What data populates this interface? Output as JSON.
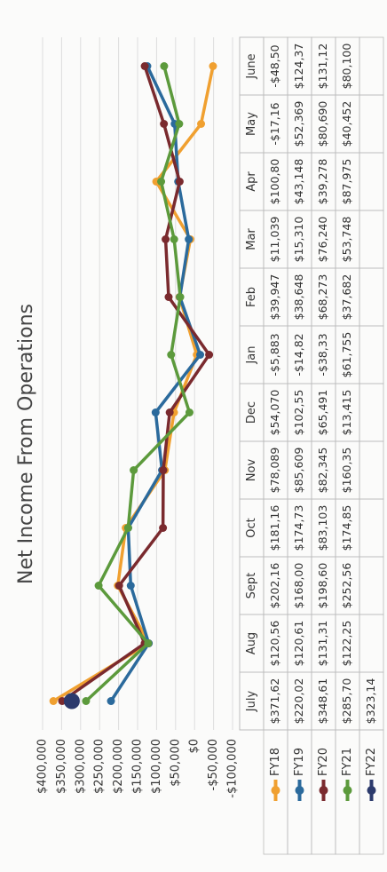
{
  "chart_data": {
    "type": "line",
    "title": "Net Income From Operations",
    "categories": [
      "July",
      "Aug",
      "Sept",
      "Oct",
      "Nov",
      "Dec",
      "Jan",
      "Feb",
      "Mar",
      "Apr",
      "May",
      "June"
    ],
    "series": [
      {
        "name": "FY18",
        "color": "#f0a030",
        "values": [
          371620,
          120560,
          202160,
          181160,
          78089,
          54070,
          -5883,
          39947,
          11039,
          100800,
          -17160,
          -48500
        ]
      },
      {
        "name": "FY19",
        "color": "#2b6a9c",
        "values": [
          220020,
          120610,
          168000,
          174730,
          85609,
          102550,
          -14820,
          38648,
          15310,
          43148,
          52369,
          124370
        ]
      },
      {
        "name": "FY20",
        "color": "#7a2a2e",
        "values": [
          348610,
          131310,
          198600,
          83103,
          82345,
          65491,
          -38330,
          68273,
          76240,
          39278,
          80690,
          131120
        ]
      },
      {
        "name": "FY21",
        "color": "#5c9a3c",
        "values": [
          285700,
          122250,
          252560,
          174850,
          160350,
          13415,
          61755,
          37682,
          53748,
          87975,
          40452,
          80100
        ]
      },
      {
        "name": "FY22",
        "color": "#2c3a6c",
        "values": [
          323140,
          null,
          null,
          null,
          null,
          null,
          null,
          null,
          null,
          null,
          null,
          null
        ]
      }
    ],
    "ylim": [
      -100000,
      400000
    ],
    "yticks": [
      {
        "value": -100000,
        "label": "-$100,000"
      },
      {
        "value": -50000,
        "label": "-$50,000"
      },
      {
        "value": 0,
        "label": "$0"
      },
      {
        "value": 50000,
        "label": "$50,000"
      },
      {
        "value": 100000,
        "label": "$100,000"
      },
      {
        "value": 150000,
        "label": "$150,000"
      },
      {
        "value": 200000,
        "label": "$200,000"
      },
      {
        "value": 250000,
        "label": "$250,000"
      },
      {
        "value": 300000,
        "label": "$300,000"
      },
      {
        "value": 350000,
        "label": "$350,000"
      },
      {
        "value": 400000,
        "label": "$400,000"
      }
    ],
    "grid": true,
    "table": {
      "rows": [
        [
          "$371,62",
          "$120,56",
          "$202,16",
          "$181,16",
          "$78,089",
          "$54,070",
          "-$5,883",
          "$39,947",
          "$11,039",
          "$100,80",
          "-$17,16",
          "-$48,50"
        ],
        [
          "$220,02",
          "$120,61",
          "$168,00",
          "$174,73",
          "$85,609",
          "$102,55",
          "-$14,82",
          "$38,648",
          "$15,310",
          "$43,148",
          "$52,369",
          "$124,37"
        ],
        [
          "$348,61",
          "$131,31",
          "$198,60",
          "$83,103",
          "$82,345",
          "$65,491",
          "-$38,33",
          "$68,273",
          "$76,240",
          "$39,278",
          "$80,690",
          "$131,12"
        ],
        [
          "$285,70",
          "$122,25",
          "$252,56",
          "$174,85",
          "$160,35",
          "$13,415",
          "$61,755",
          "$37,682",
          "$53,748",
          "$87,975",
          "$40,452",
          "$80,100"
        ],
        [
          "$323,14"
        ]
      ]
    }
  }
}
